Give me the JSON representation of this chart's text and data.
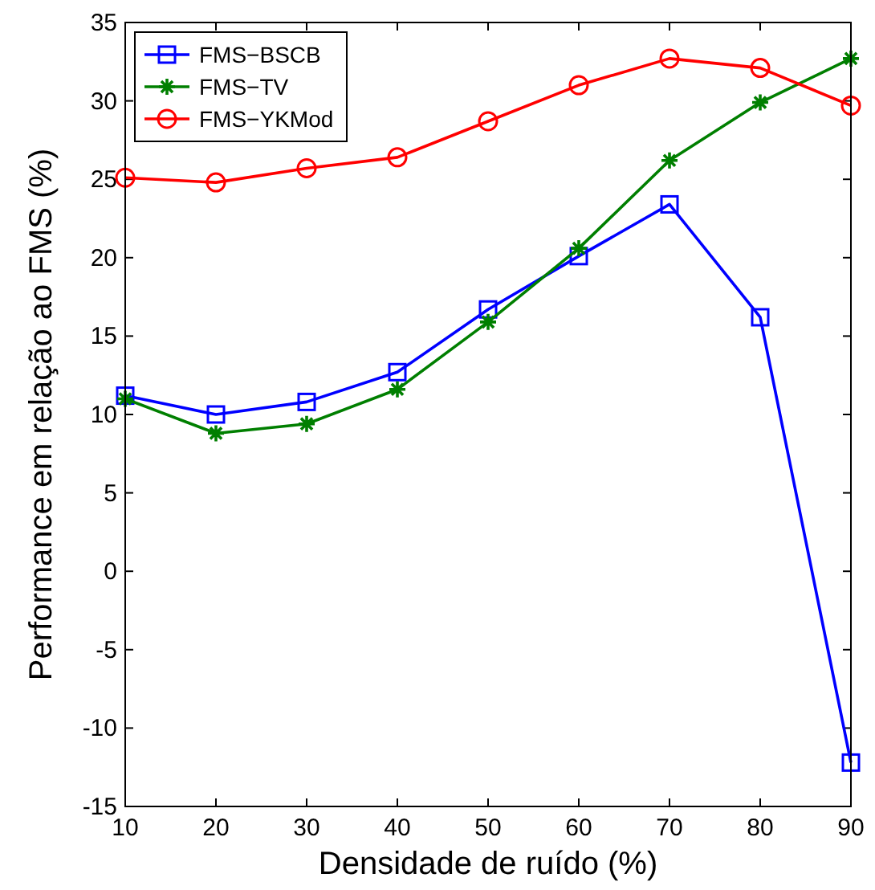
{
  "chart_data": {
    "type": "line",
    "xlabel": "Densidade de ruído (%)",
    "ylabel": "Performance em relação ao FMS (%)",
    "x": [
      10,
      20,
      30,
      40,
      50,
      60,
      70,
      80,
      90
    ],
    "xlim": [
      10,
      90
    ],
    "xticks": [
      10,
      20,
      30,
      40,
      50,
      60,
      70,
      80,
      90
    ],
    "ylim": [
      -15,
      35
    ],
    "yticks": [
      -15,
      -10,
      -5,
      0,
      5,
      10,
      15,
      20,
      25,
      30,
      35
    ],
    "grid": false,
    "legend": "top left",
    "line_style": "solid",
    "series": [
      {
        "name": "FMS−BSCB",
        "color": "#0000ff",
        "marker": "square",
        "values": [
          11.2,
          10.0,
          10.8,
          12.7,
          16.7,
          20.1,
          23.4,
          16.2,
          -12.2
        ]
      },
      {
        "name": "FMS−TV",
        "color": "#007f00",
        "marker": "cross",
        "values": [
          11.0,
          8.8,
          9.4,
          11.6,
          15.9,
          20.6,
          26.2,
          29.9,
          32.7
        ]
      },
      {
        "name": "FMS−YKMod",
        "color": "#ff0000",
        "marker": "circle",
        "values": [
          25.1,
          24.8,
          25.7,
          26.4,
          28.7,
          31.0,
          32.7,
          32.1,
          29.7
        ]
      }
    ]
  }
}
